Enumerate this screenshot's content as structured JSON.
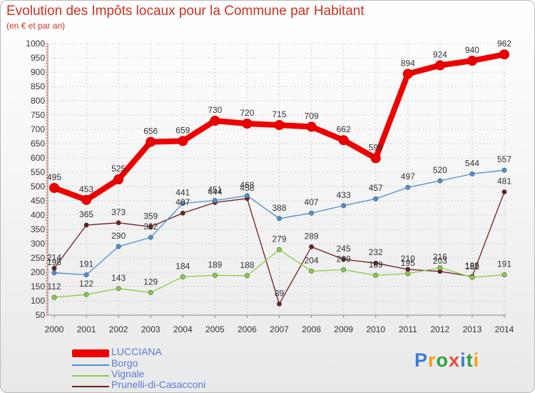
{
  "header": {
    "title": "Evolution des Impôts locaux pour la Commune par Habitant",
    "subtitle": "(en € et par an)"
  },
  "logo": {
    "text": "Proxiti",
    "colors": [
      "#3a7bd5",
      "#f39c12",
      "#2ea043",
      "#e74c3c",
      "#3a7bd5",
      "#2ea043",
      "#f39c12"
    ]
  },
  "chart_data": {
    "type": "line",
    "title": "Evolution des Impôts locaux pour la Commune par Habitant",
    "subtitle": "(en € et par an)",
    "xlabel": "",
    "ylabel": "",
    "x": [
      "2000",
      "2001",
      "2002",
      "2003",
      "2004",
      "2005",
      "2006",
      "2007",
      "2008",
      "2009",
      "2010",
      "2011",
      "2012",
      "2013",
      "2014"
    ],
    "ylim": [
      50,
      1000
    ],
    "yticks": [
      50,
      100,
      150,
      200,
      250,
      300,
      350,
      400,
      450,
      500,
      550,
      600,
      650,
      700,
      750,
      800,
      850,
      900,
      950,
      1000
    ],
    "grid": true,
    "legend_position": "bottom-left",
    "series": [
      {
        "name": "LUCCIANA",
        "color": "#ee0000",
        "values": [
          495,
          453,
          525,
          656,
          659,
          730,
          720,
          715,
          709,
          662,
          599,
          894,
          924,
          940,
          962
        ]
      },
      {
        "name": "Borgo",
        "color": "#4a90d9",
        "values": [
          198,
          191,
          290,
          322,
          441,
          451,
          468,
          388,
          407,
          433,
          457,
          497,
          520,
          544,
          557
        ]
      },
      {
        "name": "Vignale",
        "color": "#88cc44",
        "values": [
          112,
          122,
          143,
          129,
          184,
          189,
          188,
          279,
          204,
          209,
          189,
          195,
          216,
          182,
          191
        ]
      },
      {
        "name": "Prunelli-di-Casacconi",
        "color": "#6b1f1f",
        "values": [
          214,
          365,
          373,
          359,
          407,
          444,
          458,
          89,
          289,
          245,
          232,
          210,
          203,
          185,
          481
        ]
      }
    ]
  }
}
